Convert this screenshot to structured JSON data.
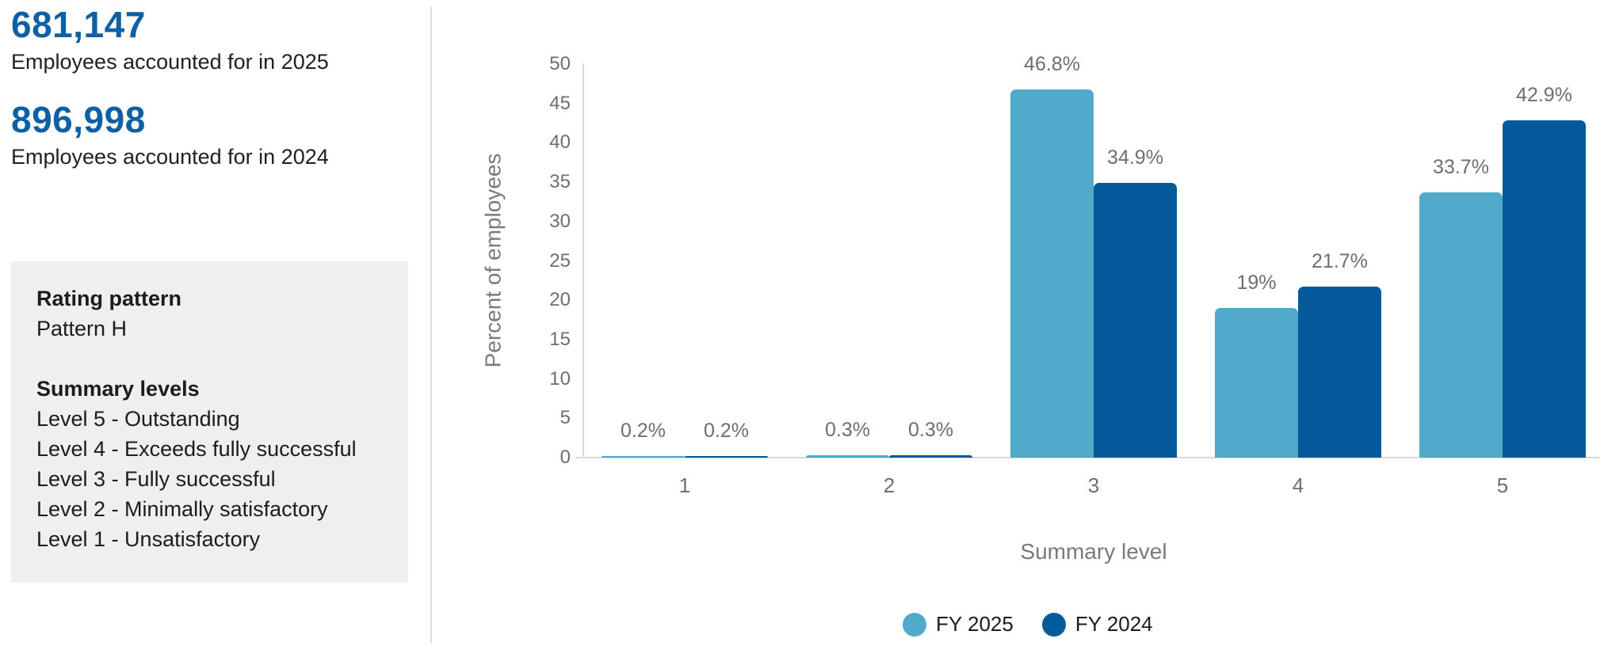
{
  "stats": [
    {
      "value": "681,147",
      "label": "Employees accounted for in 2025"
    },
    {
      "value": "896,998",
      "label": "Employees accounted for in 2024"
    }
  ],
  "info_box": {
    "rating_pattern_heading": "Rating pattern",
    "rating_pattern_value": "Pattern H",
    "summary_levels_heading": "Summary levels",
    "summary_levels": [
      "Level 5 - Outstanding",
      "Level 4 - Exceeds fully successful",
      "Level 3 - Fully successful",
      "Level 2 - Minimally satisfactory",
      "Level 1 - Unsatisfactory"
    ]
  },
  "chart_data": {
    "type": "bar",
    "categories": [
      "1",
      "2",
      "3",
      "4",
      "5"
    ],
    "series": [
      {
        "name": "FY 2025",
        "color": "#52aacb",
        "values": [
          0.2,
          0.3,
          46.8,
          19,
          33.7
        ],
        "labels": [
          "0.2%",
          "0.3%",
          "46.8%",
          "19%",
          "33.7%"
        ]
      },
      {
        "name": "FY 2024",
        "color": "#045a9a",
        "values": [
          0.2,
          0.3,
          34.9,
          21.7,
          42.9
        ],
        "labels": [
          "0.2%",
          "0.3%",
          "34.9%",
          "21.7%",
          "42.9%"
        ]
      }
    ],
    "title": "",
    "xlabel": "Summary level",
    "ylabel": "Percent of employees",
    "ylim": [
      0,
      50
    ],
    "ytick_step": 5,
    "grid": false,
    "legend_position": "bottom"
  },
  "colors": {
    "accent": "#0d60a5",
    "axis_line": "#d9d9d9",
    "muted_text": "#6e6e6e",
    "info_box_bg": "#efefef"
  }
}
